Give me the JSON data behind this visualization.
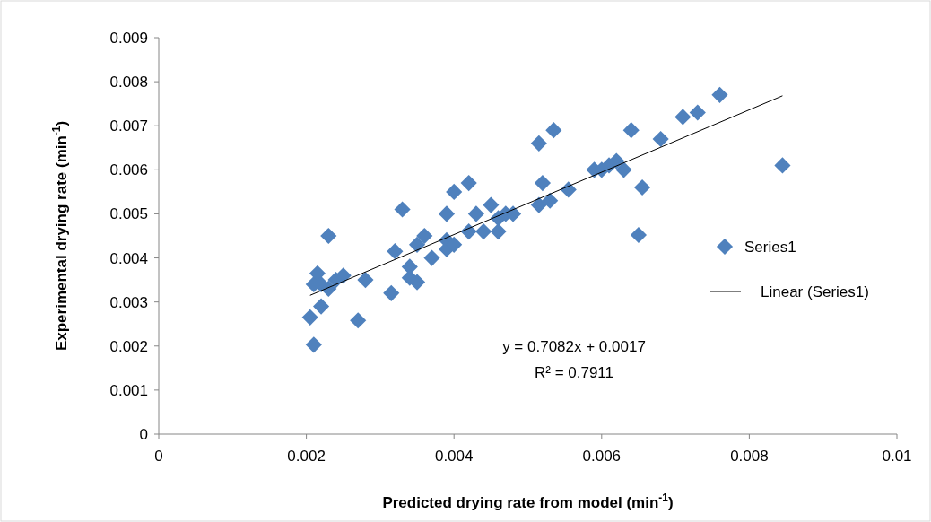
{
  "chart_data": {
    "type": "scatter",
    "xlabel": "Predicted drying rate from model (min$^{-1}$)",
    "ylabel": "Experimental drying rate (min$^{-1}$)",
    "xlim": [
      0,
      0.01
    ],
    "xticks": [
      0,
      0.002,
      0.004,
      0.006,
      0.008,
      0.01
    ],
    "ylim": [
      0,
      0.009
    ],
    "yticks": [
      0,
      0.001,
      0.002,
      0.003,
      0.004,
      0.005,
      0.006,
      0.007,
      0.008,
      0.009
    ],
    "grid": false,
    "legend": "right",
    "annotations": [
      "y = 0.7082x + 0.0017",
      "R² = 0.7911"
    ],
    "series": [
      {
        "name": "Series1",
        "marker": "diamond",
        "color": "#4f81bd",
        "x": [
          0.00205,
          0.0021,
          0.0021,
          0.00215,
          0.0022,
          0.0022,
          0.0023,
          0.0023,
          0.0024,
          0.0025,
          0.0027,
          0.0028,
          0.00315,
          0.0032,
          0.0033,
          0.0034,
          0.0034,
          0.0035,
          0.0035,
          0.0036,
          0.0037,
          0.0039,
          0.0039,
          0.0039,
          0.004,
          0.004,
          0.0042,
          0.0042,
          0.0043,
          0.0044,
          0.0045,
          0.0046,
          0.0046,
          0.0047,
          0.0048,
          0.00515,
          0.00515,
          0.0052,
          0.0053,
          0.00535,
          0.00555,
          0.0059,
          0.006,
          0.0061,
          0.0062,
          0.0063,
          0.0064,
          0.0065,
          0.00655,
          0.0068,
          0.0071,
          0.0073,
          0.0076,
          0.00845
        ],
        "values": [
          0.00265,
          0.00203,
          0.0034,
          0.00365,
          0.0029,
          0.0034,
          0.0045,
          0.0033,
          0.0035,
          0.0036,
          0.00258,
          0.0035,
          0.0032,
          0.00415,
          0.0051,
          0.0038,
          0.00355,
          0.00345,
          0.0043,
          0.0045,
          0.004,
          0.005,
          0.0044,
          0.0042,
          0.0043,
          0.0055,
          0.0057,
          0.0046,
          0.005,
          0.0046,
          0.0052,
          0.0046,
          0.0049,
          0.005,
          0.005,
          0.0066,
          0.0052,
          0.0057,
          0.0053,
          0.0069,
          0.00555,
          0.006,
          0.006,
          0.0061,
          0.0062,
          0.006,
          0.0069,
          0.00452,
          0.0056,
          0.0067,
          0.0072,
          0.0073,
          0.0077,
          0.0061
        ]
      },
      {
        "name": "Linear (Series1)",
        "type": "line",
        "marker": "none",
        "color": "#000000",
        "line_style": "solid",
        "x": [
          0.00205,
          0.00845
        ],
        "values": [
          0.00315,
          0.00768
        ]
      }
    ]
  }
}
